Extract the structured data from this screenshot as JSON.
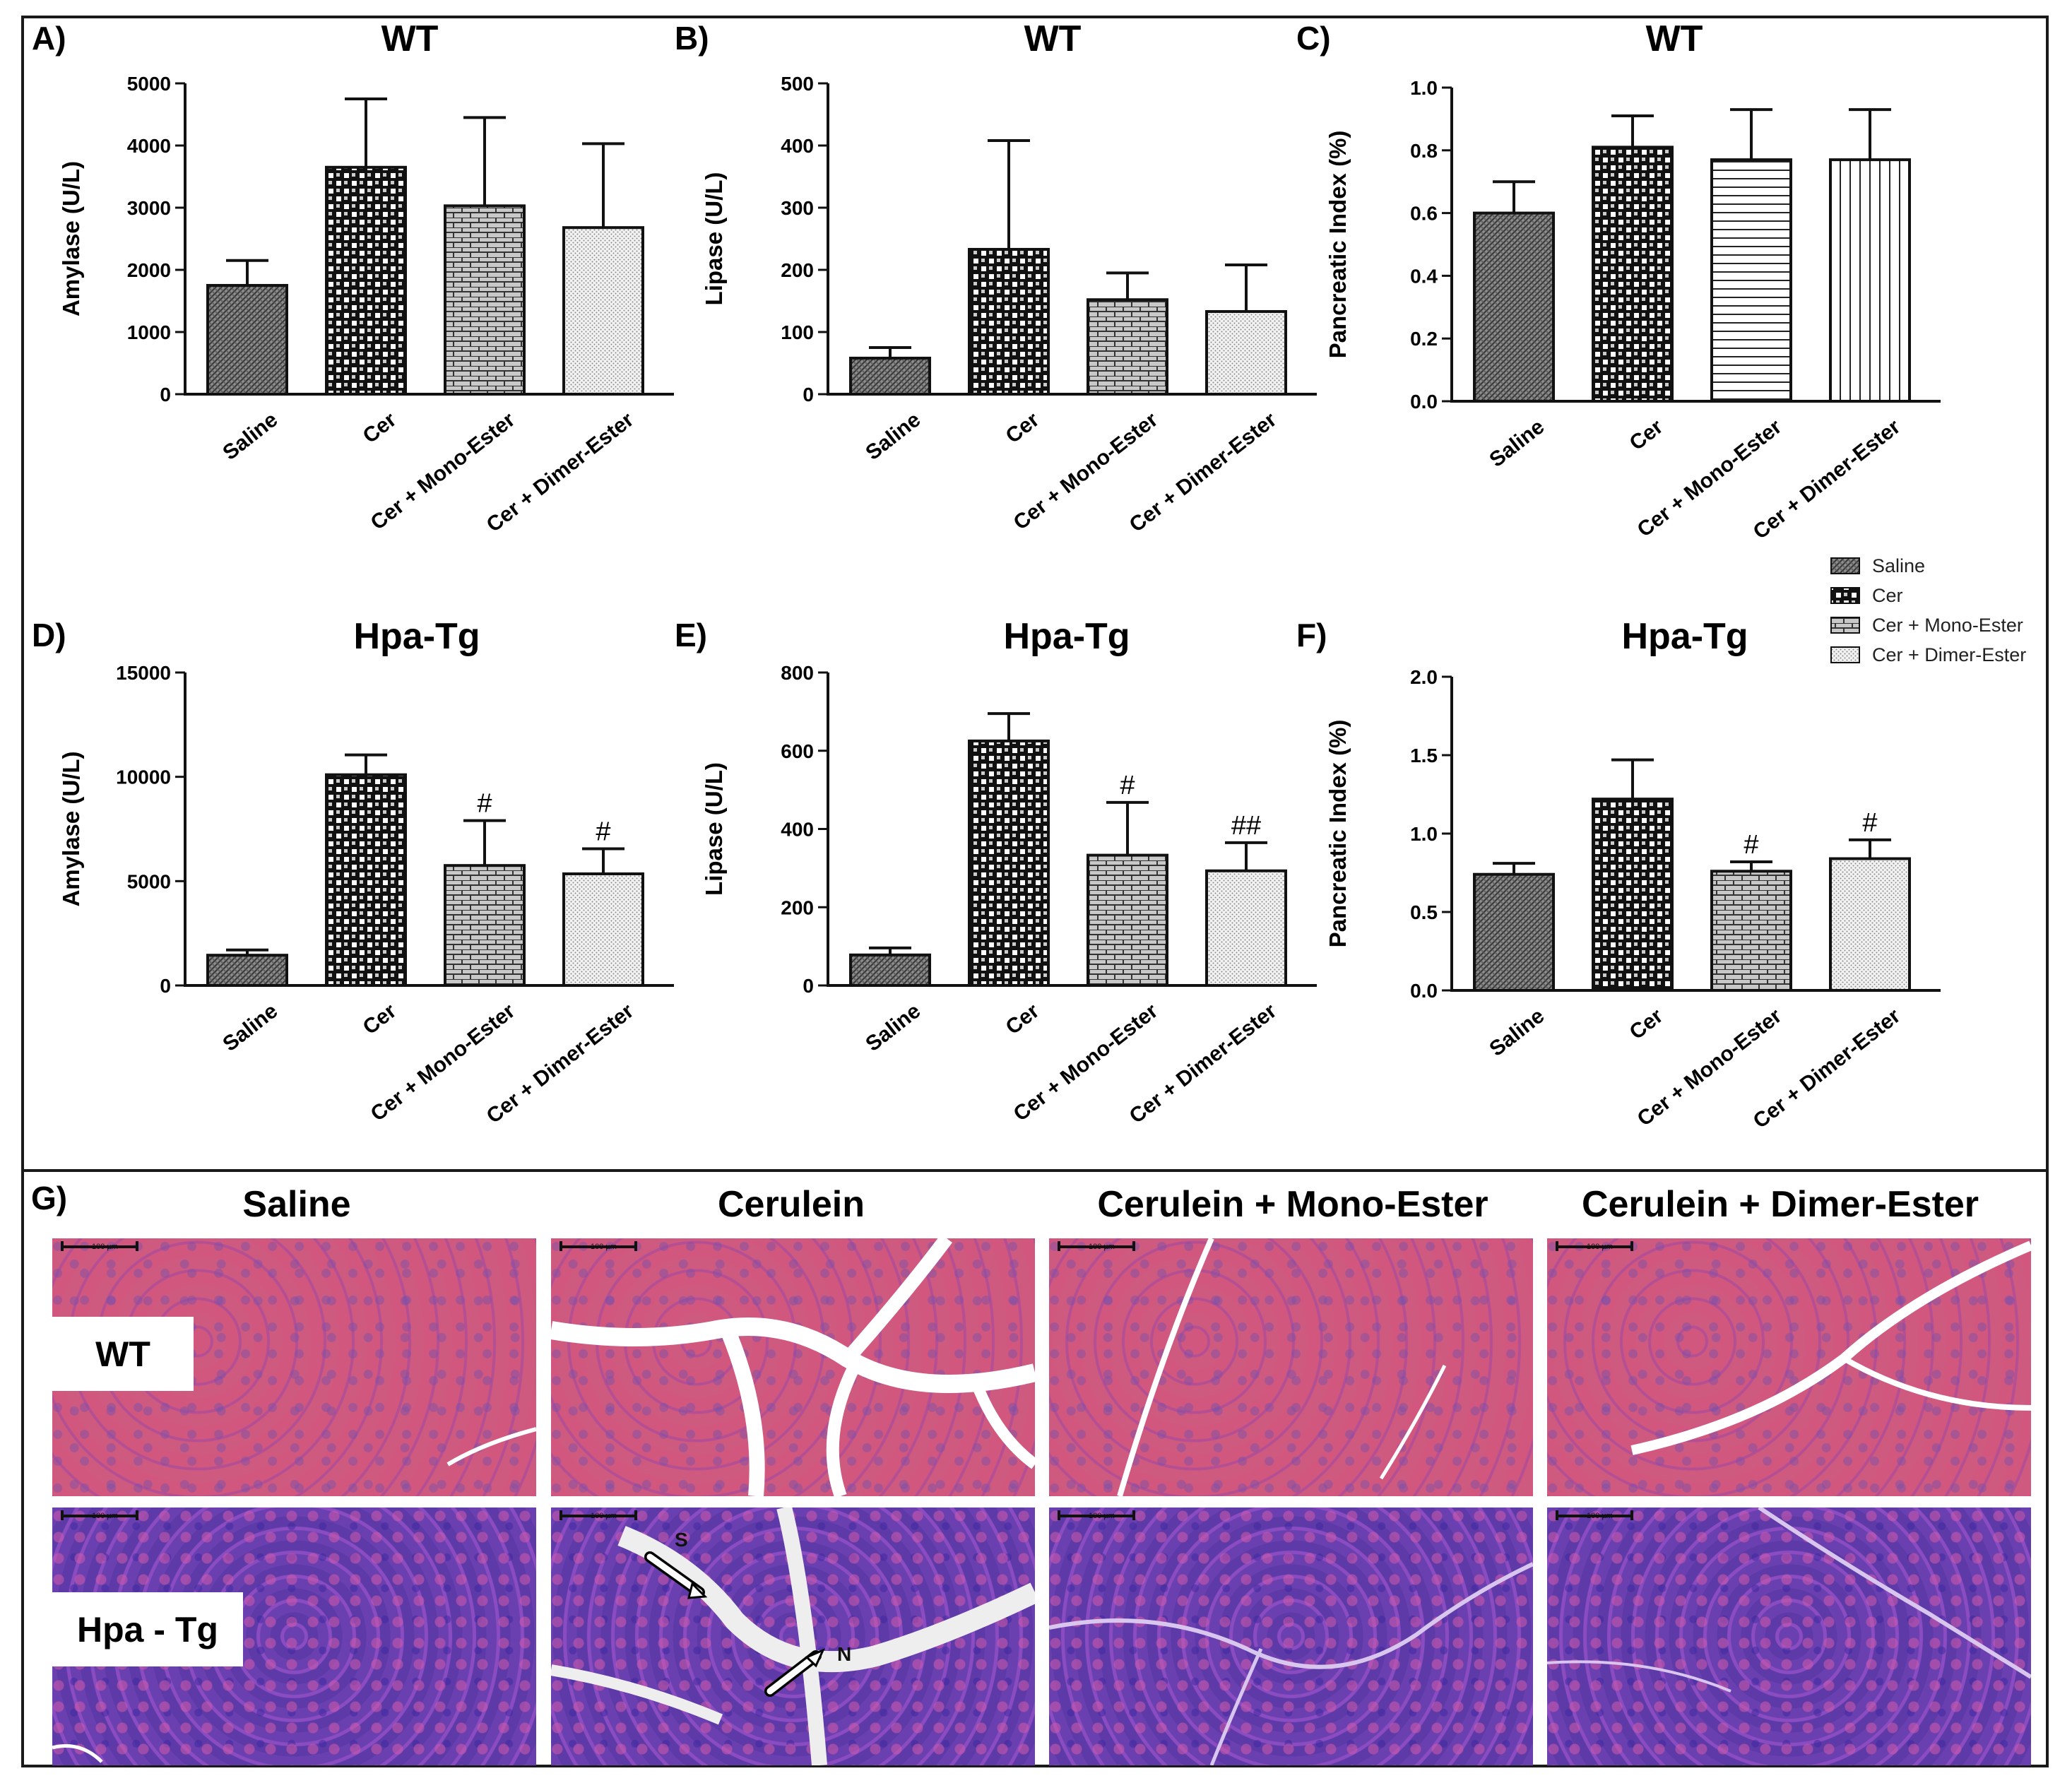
{
  "legend": {
    "items": [
      {
        "label": "Saline",
        "pattern": "p-saline"
      },
      {
        "label": "Cer",
        "pattern": "p-cer"
      },
      {
        "label": "Cer + Mono-Ester",
        "pattern": "p-mono"
      },
      {
        "label": "Cer + Dimer-Ester",
        "pattern": "p-dimer"
      }
    ]
  },
  "chart_data": [
    {
      "panel": "A)",
      "type": "bar",
      "title": "WT",
      "ylabel": "Amylase (U/L)",
      "categories": [
        "Saline",
        "Cer",
        "Cer + Mono-Ester",
        "Cer + Dimer-Ester"
      ],
      "values": [
        1750,
        3650,
        3030,
        2680
      ],
      "errors": [
        400,
        1100,
        1420,
        1350
      ],
      "annotations": [
        "",
        "",
        "",
        ""
      ],
      "ylim": [
        0,
        5000
      ],
      "yticks": [
        0,
        1000,
        2000,
        3000,
        4000,
        5000
      ],
      "patterns": [
        "p-saline",
        "p-cer",
        "p-mono",
        "p-dimer"
      ]
    },
    {
      "panel": "B)",
      "type": "bar",
      "title": "WT",
      "ylabel": "Lipase (U/L)",
      "categories": [
        "Saline",
        "Cer",
        "Cer + Mono-Ester",
        "Cer + Dimer-Ester"
      ],
      "values": [
        58,
        233,
        152,
        133
      ],
      "errors": [
        17,
        175,
        43,
        75
      ],
      "annotations": [
        "",
        "",
        "",
        ""
      ],
      "ylim": [
        0,
        500
      ],
      "yticks": [
        0,
        100,
        200,
        300,
        400,
        500
      ],
      "patterns": [
        "p-saline",
        "p-cer",
        "p-mono",
        "p-dimer"
      ]
    },
    {
      "panel": "C)",
      "type": "bar",
      "title": "WT",
      "ylabel": "Pancreatic Index (%)",
      "categories": [
        "Saline",
        "Cer",
        "Cer + Mono-Ester",
        "Cer + Dimer-Ester"
      ],
      "values": [
        0.6,
        0.81,
        0.77,
        0.77
      ],
      "errors": [
        0.1,
        0.1,
        0.16,
        0.16
      ],
      "annotations": [
        "",
        "",
        "",
        ""
      ],
      "ylim": [
        0,
        1.0
      ],
      "yticks": [
        "0.0",
        "0.2",
        "0.4",
        "0.6",
        "0.8",
        "1.0"
      ],
      "patterns": [
        "p-saline",
        "p-cer",
        "p-hstripe",
        "p-vstripe"
      ]
    },
    {
      "panel": "D)",
      "type": "bar",
      "title": "Hpa-Tg",
      "ylabel": "Amylase (U/L)",
      "categories": [
        "Saline",
        "Cer",
        "Cer + Mono-Ester",
        "Cer + Dimer-Ester"
      ],
      "values": [
        1450,
        10100,
        5750,
        5350
      ],
      "errors": [
        250,
        950,
        2150,
        1200
      ],
      "annotations": [
        "",
        "",
        "#",
        "#"
      ],
      "ylim": [
        0,
        15000
      ],
      "yticks": [
        0,
        5000,
        10000,
        15000
      ],
      "patterns": [
        "p-saline",
        "p-cer",
        "p-mono",
        "p-dimer"
      ]
    },
    {
      "panel": "E)",
      "type": "bar",
      "title": "Hpa-Tg",
      "ylabel": "Lipase (U/L)",
      "categories": [
        "Saline",
        "Cer",
        "Cer + Mono-Ester",
        "Cer + Dimer-Ester"
      ],
      "values": [
        78,
        625,
        333,
        293
      ],
      "errors": [
        18,
        70,
        135,
        72
      ],
      "annotations": [
        "",
        "",
        "#",
        "##"
      ],
      "ylim": [
        0,
        800
      ],
      "yticks": [
        0,
        200,
        400,
        600,
        800
      ],
      "patterns": [
        "p-saline",
        "p-cer",
        "p-mono",
        "p-dimer"
      ]
    },
    {
      "panel": "F)",
      "type": "bar",
      "title": "Hpa-Tg",
      "ylabel": "Pancreatic Index (%)",
      "categories": [
        "Saline",
        "Cer",
        "Cer + Mono-Ester",
        "Cer + Dimer-Ester"
      ],
      "values": [
        0.74,
        1.22,
        0.76,
        0.84
      ],
      "errors": [
        0.07,
        0.25,
        0.06,
        0.12
      ],
      "annotations": [
        "",
        "",
        "#",
        "#"
      ],
      "ylim": [
        0,
        2.0
      ],
      "yticks": [
        "0.0",
        "0.5",
        "1.0",
        "1.5",
        "2.0"
      ],
      "patterns": [
        "p-saline",
        "p-cer",
        "p-mono",
        "p-dimer"
      ]
    }
  ],
  "histology": {
    "panel_label": "G)",
    "column_titles": [
      "Saline",
      "Cerulein",
      "Cerulein + Mono-Ester",
      "Cerulein + Dimer-Ester"
    ],
    "row_labels": [
      "WT",
      "Hpa - Tg"
    ],
    "arrow_labels": [
      "S",
      "N"
    ],
    "scale_bar_text": "100 µm"
  }
}
